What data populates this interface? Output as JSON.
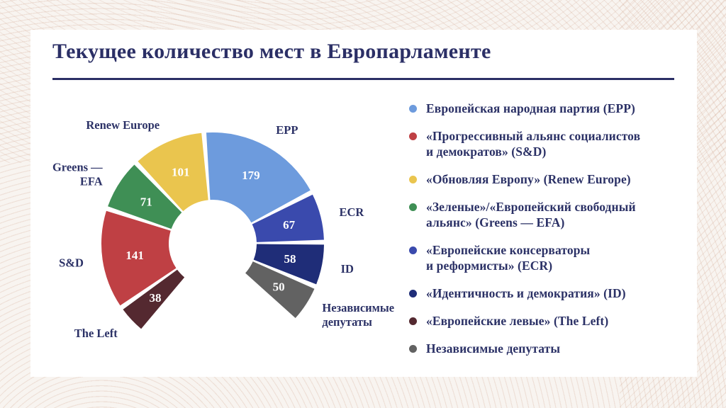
{
  "page": {
    "title": "Текущее количество мест в Европарламенте"
  },
  "colors": {
    "page_background": "#f8f4f0",
    "card_background": "#ffffff",
    "text_navy": "#2b3166",
    "title_navy": "#2b2f66",
    "pattern_line": "#c79378",
    "value_label": "#ffffff"
  },
  "chart_data": {
    "type": "pie",
    "variant": "half-donut-gauge",
    "title": "Текущее количество мест в Европарламенте",
    "legend_position": "right",
    "arc": {
      "start_deg": 230,
      "end_deg": -42,
      "gap_deg": 2.5
    },
    "segments": [
      {
        "id": "epp",
        "seats": 179,
        "color": "#6d9bdd",
        "short_label": "EPP",
        "legend_label": "Европейская народная партия (EPP)"
      },
      {
        "id": "sd",
        "seats": 141,
        "color": "#bf4044",
        "short_label": "S&D",
        "legend_label": "«Прогрессивный альянс социалистов\nи демократов» (S&D)"
      },
      {
        "id": "renew",
        "seats": 101,
        "color": "#eac54e",
        "short_label": "Renew Europe",
        "legend_label": "«Обновляя Европу» (Renew Europe)"
      },
      {
        "id": "greens",
        "seats": 71,
        "color": "#3f8f55",
        "short_label": "Greens —\nEFA",
        "legend_label": "«Зеленые»/«Европейский свободный\nальянс» (Greens — EFA)"
      },
      {
        "id": "ecr",
        "seats": 67,
        "color": "#3a4aad",
        "short_label": "ECR",
        "legend_label": "«Европейские консерваторы\nи реформисты» (ECR)"
      },
      {
        "id": "idp",
        "seats": 58,
        "color": "#1f2d78",
        "short_label": "ID",
        "legend_label": "«Идентичность и демократия» (ID)"
      },
      {
        "id": "left",
        "seats": 38,
        "color": "#542930",
        "short_label": "The Left",
        "legend_label": "«Европейские левые» (The Left)"
      },
      {
        "id": "ni",
        "seats": 50,
        "color": "#626262",
        "short_label": "Независимые\nдепутаты",
        "legend_label": "Независимые депутаты"
      }
    ],
    "display_order": [
      "left",
      "sd",
      "greens",
      "renew",
      "epp",
      "ecr",
      "idp",
      "ni"
    ],
    "legend_order": [
      "epp",
      "sd",
      "renew",
      "greens",
      "ecr",
      "idp",
      "left",
      "ni"
    ]
  }
}
